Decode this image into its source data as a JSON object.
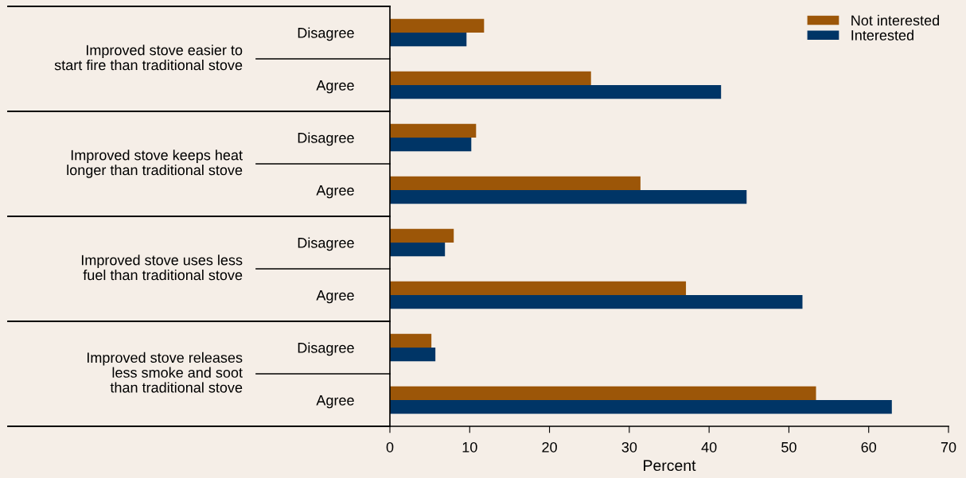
{
  "chart_data": {
    "type": "bar",
    "orientation": "horizontal",
    "xlabel": "Percent",
    "categories": [
      "Disagree",
      "Agree",
      "Disagree",
      "Agree",
      "Disagree",
      "Agree",
      "Disagree",
      "Agree"
    ],
    "annotations": [
      "Improved stove easier to\nstart fire than traditional stove",
      "Improved stove keeps heat\nlonger than traditional stove",
      "Improved stove uses less\nfuel than traditional stove",
      "Improved stove releases\nless smoke and soot\nthan traditional stove"
    ],
    "series": [
      {
        "name": "Not interested",
        "color": "#9c5608",
        "values": [
          11.8,
          25.2,
          10.8,
          31.4,
          8.0,
          37.1,
          5.2,
          53.4
        ]
      },
      {
        "name": "Interested",
        "color": "#003566",
        "values": [
          9.6,
          41.5,
          10.2,
          44.7,
          6.9,
          51.7,
          5.7,
          62.9
        ]
      }
    ],
    "xlim": [
      0,
      70
    ],
    "xticks": [
      0,
      10,
      20,
      30,
      40,
      50,
      60,
      70
    ],
    "grid": false,
    "legend": "top right"
  }
}
